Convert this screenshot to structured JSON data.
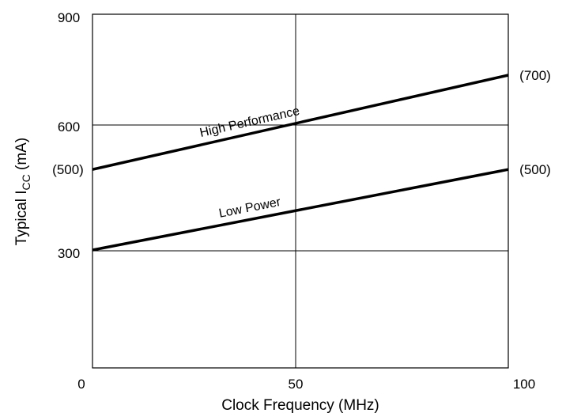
{
  "chart_data": {
    "type": "line",
    "xlabel": "Clock Frequency (MHz)",
    "ylabel": {
      "main": "Typical I",
      "subscript": "CC",
      "suffix": " (mA)"
    },
    "xlim": [
      0,
      100
    ],
    "ylim": [
      0,
      900
    ],
    "x_ticks": [
      {
        "value": 0,
        "label": "0"
      },
      {
        "value": 50,
        "label": "50"
      },
      {
        "value": 100,
        "label": "100"
      }
    ],
    "y_ticks": [
      {
        "value": 300,
        "label": "300"
      },
      {
        "value": 600,
        "label": "600"
      },
      {
        "value": 900,
        "label": "900"
      }
    ],
    "grid": true,
    "series": [
      {
        "name": "High Performance",
        "x": [
          0,
          100
        ],
        "y": [
          505,
          745
        ],
        "start_label": "(500)",
        "end_label": "(700)"
      },
      {
        "name": "Low Power",
        "x": [
          0,
          100
        ],
        "y": [
          300,
          505
        ],
        "start_label": "",
        "end_label": "(500)"
      }
    ]
  }
}
